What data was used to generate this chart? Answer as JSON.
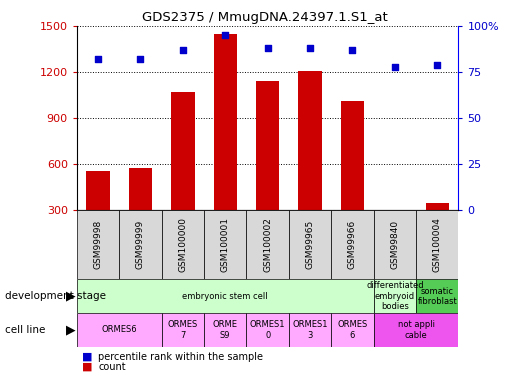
{
  "title": "GDS2375 / MmugDNA.24397.1.S1_at",
  "samples": [
    "GSM99998",
    "GSM99999",
    "GSM100000",
    "GSM100001",
    "GSM100002",
    "GSM99965",
    "GSM99966",
    "GSM99840",
    "GSM100004"
  ],
  "counts": [
    555,
    575,
    1070,
    1450,
    1145,
    1210,
    1010,
    290,
    345
  ],
  "percentile_ranks": [
    82,
    82,
    87,
    95,
    88,
    88,
    87,
    78,
    79
  ],
  "bar_color": "#cc0000",
  "dot_color": "#0000cc",
  "ylim_left": [
    300,
    1500
  ],
  "ylim_right": [
    0,
    100
  ],
  "yticks_left": [
    300,
    600,
    900,
    1200,
    1500
  ],
  "yticks_right": [
    0,
    25,
    50,
    75,
    100
  ],
  "ytick_labels_right": [
    "0",
    "25",
    "50",
    "75",
    "100%"
  ],
  "dev_groups": [
    {
      "start": 0,
      "end": 7,
      "label": "embryonic stem cell",
      "color": "#ccffcc"
    },
    {
      "start": 7,
      "end": 8,
      "label": "differentiated\nembryoid\nbodies",
      "color": "#ccffcc"
    },
    {
      "start": 8,
      "end": 9,
      "label": "somatic\nfibroblast",
      "color": "#55cc55"
    }
  ],
  "cell_groups": [
    {
      "start": 0,
      "end": 2,
      "label": "ORMES6",
      "color": "#ffaaff"
    },
    {
      "start": 2,
      "end": 3,
      "label": "ORMES\n7",
      "color": "#ffaaff"
    },
    {
      "start": 3,
      "end": 4,
      "label": "ORME\nS9",
      "color": "#ffaaff"
    },
    {
      "start": 4,
      "end": 5,
      "label": "ORMES1\n0",
      "color": "#ffaaff"
    },
    {
      "start": 5,
      "end": 6,
      "label": "ORMES1\n3",
      "color": "#ffaaff"
    },
    {
      "start": 6,
      "end": 7,
      "label": "ORMES\n6",
      "color": "#ffaaff"
    },
    {
      "start": 7,
      "end": 9,
      "label": "not appli\ncable",
      "color": "#ee55ee"
    }
  ],
  "label_left": "development stage",
  "label_right": "cell line",
  "legend_count_color": "#cc0000",
  "legend_pct_color": "#0000cc"
}
